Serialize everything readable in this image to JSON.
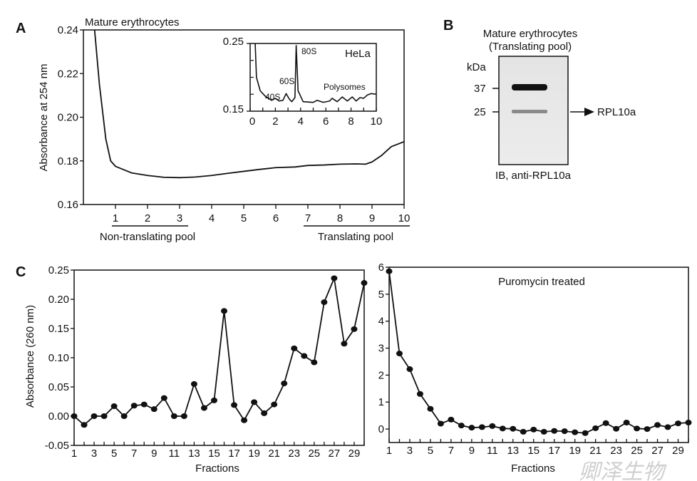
{
  "panel_labels": {
    "a": "A",
    "b": "B",
    "c": "C"
  },
  "watermark": "卿泽生物",
  "chart_data": [
    {
      "id": "A-main",
      "type": "line",
      "title": "Mature erythrocytes",
      "xlabel": "",
      "ylabel": "Absorbance at 254 nm",
      "xlim": [
        0,
        10
      ],
      "ylim": [
        0.16,
        0.24
      ],
      "xticks": [
        1,
        2,
        3,
        4,
        5,
        6,
        7,
        8,
        9,
        10
      ],
      "yticks": [
        "0.16",
        "0.18",
        "0.20",
        "0.22",
        "0.24"
      ],
      "grid": false,
      "annotations": {
        "non_translating": "Non-translating pool",
        "translating": "Translating pool"
      },
      "x": [
        0.35,
        0.5,
        0.7,
        0.85,
        1,
        1.5,
        2,
        2.5,
        3,
        3.5,
        4,
        4.5,
        5,
        5.5,
        6,
        6.6,
        7,
        7.5,
        8,
        8.5,
        8.8,
        9,
        9.3,
        9.6,
        10
      ],
      "y": [
        0.245,
        0.215,
        0.19,
        0.18,
        0.1775,
        0.1745,
        0.1733,
        0.1725,
        0.1723,
        0.1726,
        0.1733,
        0.1743,
        0.1752,
        0.1761,
        0.1769,
        0.1772,
        0.1779,
        0.1781,
        0.1785,
        0.1786,
        0.1785,
        0.1795,
        0.1825,
        0.1865,
        0.1888
      ]
    },
    {
      "id": "A-inset",
      "type": "line",
      "title": "HeLa",
      "xlim": [
        0,
        10
      ],
      "ylim": [
        0.15,
        0.25
      ],
      "xticks": [
        "0",
        "2",
        "4",
        "6",
        "8",
        "10"
      ],
      "yticks": [
        "0.15",
        "0.25"
      ],
      "peak_labels": [
        "40S",
        "60S",
        "80S",
        "Polysomes"
      ],
      "x": [
        0.4,
        0.5,
        0.8,
        1.2,
        1.7,
        2,
        2.3,
        2.6,
        2.85,
        3.1,
        3.3,
        3.55,
        3.65,
        3.8,
        4.2,
        5,
        5.3,
        5.8,
        6.3,
        6.5,
        6.9,
        7.3,
        7.7,
        8.1,
        8.4,
        8.7,
        9,
        9.3,
        9.6,
        10
      ],
      "y": [
        0.25,
        0.2,
        0.18,
        0.172,
        0.166,
        0.169,
        0.165,
        0.166,
        0.176,
        0.168,
        0.164,
        0.17,
        0.247,
        0.18,
        0.164,
        0.163,
        0.166,
        0.163,
        0.165,
        0.169,
        0.164,
        0.171,
        0.165,
        0.171,
        0.165,
        0.17,
        0.169,
        0.174,
        0.176,
        0.175
      ]
    },
    {
      "id": "C-left",
      "type": "line",
      "xlabel": "Fractions",
      "ylabel": "Absorbance (260 nm)",
      "xlim": [
        1,
        30
      ],
      "ylim": [
        -0.05,
        0.25
      ],
      "xtick_labels": [
        "1",
        "3",
        "5",
        "7",
        "9",
        "11",
        "13",
        "15",
        "17",
        "19",
        "21",
        "23",
        "25",
        "27",
        "29"
      ],
      "yticks": [
        "-0.05",
        "0.00",
        "0.05",
        "0.10",
        "0.15",
        "0.20",
        "0.25"
      ],
      "x": [
        1,
        2,
        3,
        4,
        5,
        6,
        7,
        8,
        9,
        10,
        11,
        12,
        13,
        14,
        15,
        16,
        17,
        18,
        19,
        20,
        21,
        22,
        23,
        24,
        25,
        26,
        27,
        28,
        29,
        30
      ],
      "y": [
        0,
        -0.015,
        0,
        0,
        0.017,
        0,
        0.018,
        0.02,
        0.012,
        0.031,
        0,
        0,
        0.055,
        0.014,
        0.027,
        0.18,
        0.019,
        -0.007,
        0.024,
        0.005,
        0.02,
        0.056,
        0.116,
        0.103,
        0.092,
        0.195,
        0.236,
        0.124,
        0.149,
        0.228
      ]
    },
    {
      "id": "C-right",
      "type": "line",
      "title": "Puromycin treated",
      "xlabel": "Fractions",
      "xlim": [
        1,
        30
      ],
      "ylim": [
        -0.5,
        6
      ],
      "xtick_labels": [
        "1",
        "3",
        "5",
        "7",
        "9",
        "11",
        "13",
        "15",
        "17",
        "19",
        "21",
        "23",
        "25",
        "27",
        "29"
      ],
      "yticks": [
        "0",
        "1",
        "2",
        "3",
        "4",
        "5",
        "6"
      ],
      "x": [
        1,
        2,
        3,
        4,
        5,
        6,
        7,
        8,
        9,
        10,
        11,
        12,
        13,
        14,
        15,
        16,
        17,
        18,
        19,
        20,
        21,
        22,
        23,
        24,
        25,
        26,
        27,
        28,
        29,
        30
      ],
      "y": [
        5.85,
        2.8,
        2.22,
        1.3,
        0.75,
        0.2,
        0.35,
        0.13,
        0.05,
        0.07,
        0.11,
        0.02,
        0.01,
        -0.1,
        -0.02,
        -0.1,
        -0.07,
        -0.08,
        -0.12,
        -0.15,
        0.03,
        0.22,
        0.01,
        0.24,
        0.02,
        0.0,
        0.15,
        0.07,
        0.21,
        0.24
      ]
    }
  ],
  "blot": {
    "title_line1": "Mature erythrocytes",
    "title_line2": "(Translating pool)",
    "unit": "kDa",
    "markers": [
      "37",
      "25"
    ],
    "band_label": "RPL10a",
    "caption": "IB, anti-RPL10a"
  }
}
